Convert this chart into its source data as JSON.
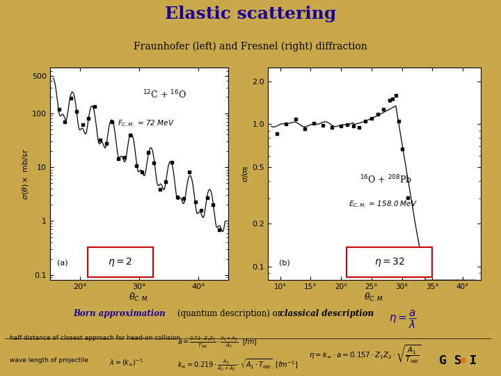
{
  "title": "Elastic scattering",
  "subtitle_full": "Fraunhofer (left) and Fresnel (right) diffraction",
  "title_color": "#1a0099",
  "subtitle_color": "#000000",
  "bg_color_top": "#c8a84b",
  "bg_color_bottom": "#c8a84b",
  "panel_bg": "#f0ece0",
  "plot_white": "#ffffff",
  "left_plot": {
    "xlim": [
      15,
      45
    ],
    "xticks": [
      20,
      30,
      40
    ],
    "xtick_labels": [
      "20°",
      "30°",
      "40°"
    ],
    "ylim": [
      0.08,
      700
    ],
    "yticks_vals": [
      0.1,
      1,
      10,
      100,
      500
    ],
    "yticks_labels": [
      "0.1",
      "1",
      "10",
      "100",
      "500"
    ]
  },
  "right_plot": {
    "xlim": [
      8,
      43
    ],
    "xticks": [
      10,
      15,
      20,
      25,
      30,
      35,
      40
    ],
    "xtick_labels": [
      "10°",
      "15°",
      "20°",
      "25°",
      "30°",
      "35°",
      "40°"
    ],
    "ylim": [
      0.08,
      2.5
    ],
    "yticks_vals": [
      0.1,
      0.2,
      0.5,
      1.0,
      2.0
    ],
    "yticks_labels": [
      "0.1",
      "0.2",
      "0.5",
      "1.0",
      "2.0"
    ]
  },
  "eta_box_color": "#cc0000"
}
